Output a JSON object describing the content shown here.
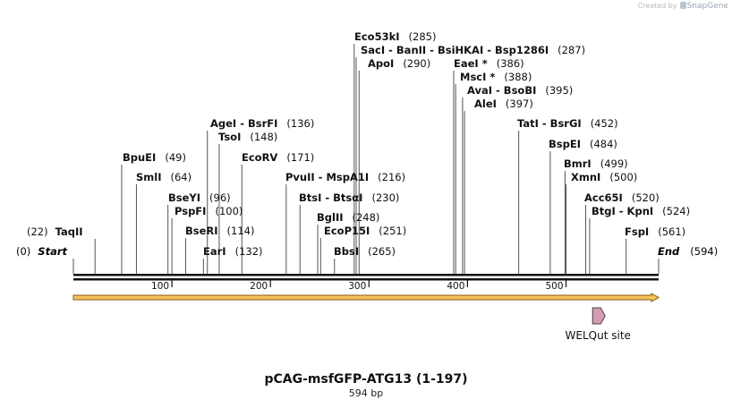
{
  "credit": {
    "prefix": "Created by",
    "brand": "SnapGene"
  },
  "map": {
    "title": "pCAG-msfGFP-ATG13 (1-197)",
    "subtitle": "594 bp",
    "length": 594,
    "start_label": "Start",
    "start_pos": "(0)",
    "end_label": "End",
    "end_pos": "(594)",
    "ticks": [
      "100",
      "200",
      "300",
      "400",
      "500"
    ],
    "sites": [
      {
        "name": "TaqII",
        "pos": "(22)",
        "bp": 22,
        "pos_first": true
      },
      {
        "name": "BpuEI",
        "pos": "(49)",
        "bp": 49
      },
      {
        "name": "SmlI",
        "pos": "(64)",
        "bp": 64
      },
      {
        "name": "BseYI",
        "pos": "(96)",
        "bp": 96
      },
      {
        "name": "PspFI",
        "pos": "(100)",
        "bp": 100
      },
      {
        "name": "BseRI",
        "pos": "(114)",
        "bp": 114
      },
      {
        "name": "EarI",
        "pos": "(132)",
        "bp": 132
      },
      {
        "name": "AgeI  -  BsrFI",
        "pos": "(136)",
        "bp": 136
      },
      {
        "name": "TsoI",
        "pos": "(148)",
        "bp": 148
      },
      {
        "name": "EcoRV",
        "pos": "(171)",
        "bp": 171
      },
      {
        "name": "PvuII  -  MspA1I",
        "pos": "(216)",
        "bp": 216
      },
      {
        "name": "BtsI  -  BtsαI",
        "pos": "(230)",
        "bp": 230
      },
      {
        "name": "BglII",
        "pos": "(248)",
        "bp": 248
      },
      {
        "name": "EcoP15I",
        "pos": "(251)",
        "bp": 251
      },
      {
        "name": "BbsI",
        "pos": "(265)",
        "bp": 265
      },
      {
        "name": "Eco53kI",
        "pos": "(285)",
        "bp": 285
      },
      {
        "name": "SacI  -  BanII  -  BsiHKAI  -  Bsp1286I",
        "pos": "(287)",
        "bp": 287
      },
      {
        "name": "ApoI",
        "pos": "(290)",
        "bp": 290
      },
      {
        "name": "EaeI *",
        "pos": "(386)",
        "bp": 386
      },
      {
        "name": "MscI *",
        "pos": "(388)",
        "bp": 388
      },
      {
        "name": "AvaI  -  BsoBI",
        "pos": "(395)",
        "bp": 395
      },
      {
        "name": "AleI",
        "pos": "(397)",
        "bp": 397
      },
      {
        "name": "TatI  -  BsrGI",
        "pos": "(452)",
        "bp": 452
      },
      {
        "name": "BspEI",
        "pos": "(484)",
        "bp": 484
      },
      {
        "name": "BmrI",
        "pos": "(499)",
        "bp": 499
      },
      {
        "name": "XmnI",
        "pos": "(500)",
        "bp": 500
      },
      {
        "name": "Acc65I",
        "pos": "(520)",
        "bp": 520
      },
      {
        "name": "BtgI  -  KpnI",
        "pos": "(524)",
        "bp": 524
      },
      {
        "name": "FspI",
        "pos": "(561)",
        "bp": 561
      }
    ],
    "features": [
      {
        "name": "WELQut site",
        "color": "#d59ab4"
      }
    ],
    "colors": {
      "backbone": "#111111",
      "orf_fill": "#f3c35a",
      "orf_stroke": "#8a5a12",
      "feature": "#d59ab4",
      "lines": "#555555"
    }
  }
}
